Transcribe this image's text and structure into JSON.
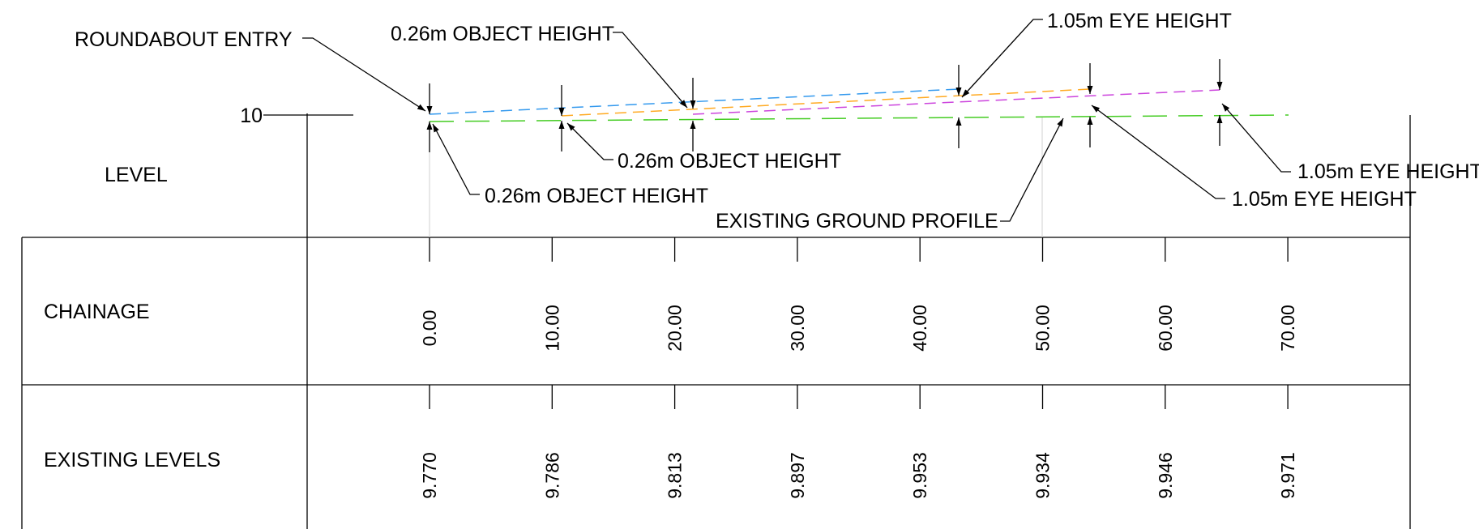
{
  "section_labels": {
    "level": "LEVEL",
    "chainage": "CHAINAGE",
    "existing_levels": "EXISTING LEVELS"
  },
  "level_axis": {
    "datum": "10"
  },
  "chainages": [
    "0.00",
    "10.00",
    "20.00",
    "30.00",
    "40.00",
    "50.00",
    "60.00",
    "70.00"
  ],
  "existing_levels": [
    "9.770",
    "9.786",
    "9.813",
    "9.897",
    "9.953",
    "9.934",
    "9.946",
    "9.971"
  ],
  "annotations": {
    "roundabout_entry": "ROUNDABOUT ENTRY",
    "object_height_1": "0.26m OBJECT HEIGHT",
    "object_height_2": "0.26m OBJECT HEIGHT",
    "object_height_3": "0.26m OBJECT HEIGHT",
    "eye_height_1": "1.05m EYE HEIGHT",
    "eye_height_2": "1.05m EYE HEIGHT",
    "eye_height_3": "1.05m EYE HEIGHT",
    "existing_ground_profile": "EXISTING GROUND PROFILE"
  },
  "sightline_colors": {
    "ground": "#44cc22",
    "blue": "#3399ee",
    "orange": "#ffaa22",
    "magenta": "#cc44dd"
  }
}
